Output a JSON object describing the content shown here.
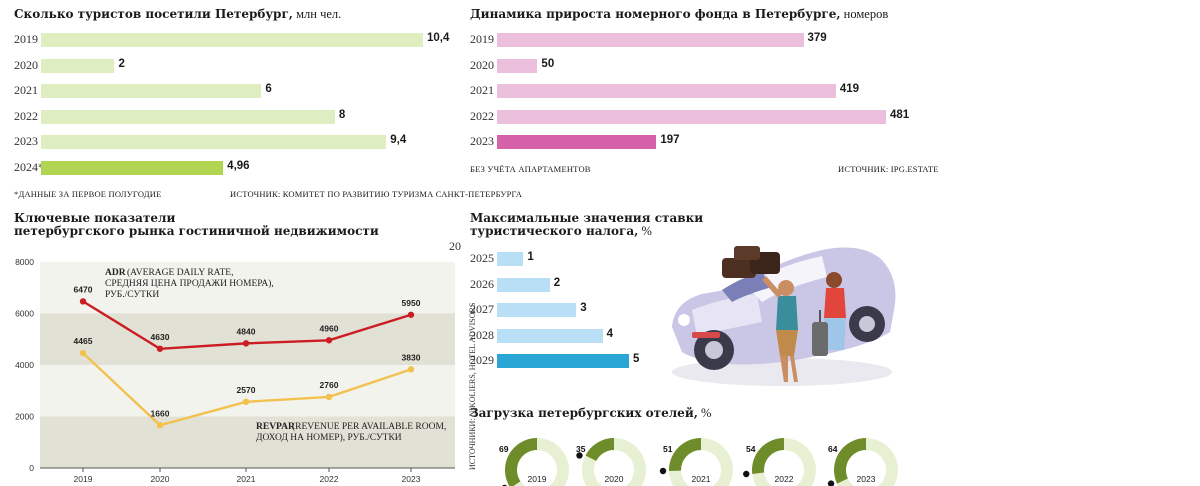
{
  "tourists": {
    "title": "Сколько туристов посетили Петербург,",
    "unit": " млн чел.",
    "note": "*ДАННЫЕ ЗА ПЕРВОЕ ПОЛУГОДИЕ",
    "source": "ИСТОЧНИК: КОМИТЕТ ПО РАЗВИТИЮ ТУРИЗМА САНКТ-ПЕТЕРБУРГА",
    "colors": {
      "normal": "#dfeec0",
      "highlight": "#b2d551"
    }
  },
  "rooms": {
    "title": "Динамика прироста номерного фонда в Петербурге,",
    "unit": " номеров",
    "note": "БЕЗ УЧЁТА АПАРТАМЕНТОВ",
    "source": "ИСТОЧНИК: IPG.ESTATE",
    "colors": {
      "normal": "#ebbedb",
      "highlight": "#d562a9"
    }
  },
  "key": {
    "title_line1": "Ключевые показатели",
    "title_line2": "петербургского рынка гостиничной недвижимости",
    "stray": "20",
    "adr_title": "ADR",
    "adr_text1": " (AVERAGE DAILY RATE,",
    "adr_text2": "СРЕДНЯЯ ЦЕНА ПРОДАЖИ НОМЕРА),",
    "adr_text3": "РУБ./СУТКИ",
    "revpar_title": "REVPAR",
    "revpar_text1": " (REVENUE PER AVAILABLE ROOM,",
    "revpar_text2": "ДОХОД НА НОМЕР), РУБ./СУТКИ",
    "colors": {
      "adr": "#cc1d24",
      "revpar": "#f2c14e",
      "band_light": "#f3f3ee",
      "band_dark": "#e2e1d5"
    }
  },
  "tax": {
    "title_line1": "Максимальные значения ставки",
    "title_line2": "туристического налога,",
    "unit": " %",
    "colors": {
      "normal": "#b8dff5",
      "highlight": "#2aa6d6"
    }
  },
  "load": {
    "title": "Загрузка петербургских отелей,",
    "unit": " %",
    "colors": {
      "fill": "#6e8c2a",
      "rest": "#e7f0d2"
    }
  },
  "sources_vertical": "ИСТОЧНИКИ: NIKOLIERS, HOTEL ADVISORS",
  "chart_data": [
    {
      "type": "bar",
      "title": "Сколько туристов посетили Петербург, млн чел.",
      "categories": [
        "2019",
        "2020",
        "2021",
        "2022",
        "2023",
        "2024*"
      ],
      "values": [
        10.4,
        2,
        6,
        8,
        9.4,
        4.96
      ],
      "value_labels": [
        "10,4",
        "2",
        "6",
        "8",
        "9,4",
        "4,96"
      ],
      "xlim": [
        0,
        10.4
      ]
    },
    {
      "type": "bar",
      "title": "Динамика прироста номерного фонда в Петербурге, номеров",
      "categories": [
        "2019",
        "2020",
        "2021",
        "2022",
        "2023"
      ],
      "values": [
        379,
        50,
        419,
        481,
        197
      ],
      "value_labels": [
        "379",
        "50",
        "419",
        "481",
        "197"
      ],
      "xlim": [
        0,
        481
      ]
    },
    {
      "type": "line",
      "title": "Ключевые показатели петербургского рынка гостиничной недвижимости",
      "x": [
        "2019",
        "2020",
        "2021",
        "2022",
        "2023"
      ],
      "yticks": [
        "0",
        "2000",
        "4000",
        "6000",
        "8000"
      ],
      "ylim": [
        0,
        8000
      ],
      "series": [
        {
          "name": "ADR",
          "values": [
            6470,
            4630,
            4840,
            4960,
            5950
          ]
        },
        {
          "name": "REVPAR",
          "values": [
            4465,
            1660,
            2570,
            2760,
            3830
          ]
        }
      ]
    },
    {
      "type": "bar",
      "title": "Максимальные значения ставки туристического налога, %",
      "categories": [
        "2025",
        "2026",
        "2027",
        "2028",
        "2029"
      ],
      "values": [
        1,
        2,
        3,
        4,
        5
      ],
      "value_labels": [
        "1",
        "2",
        "3",
        "4",
        "5"
      ],
      "xlim": [
        0,
        5
      ]
    },
    {
      "type": "pie",
      "title": "Загрузка петербургских отелей, %",
      "categories": [
        "2019",
        "2020",
        "2021",
        "2022",
        "2023"
      ],
      "values": [
        69,
        35,
        51,
        54,
        64
      ]
    }
  ]
}
